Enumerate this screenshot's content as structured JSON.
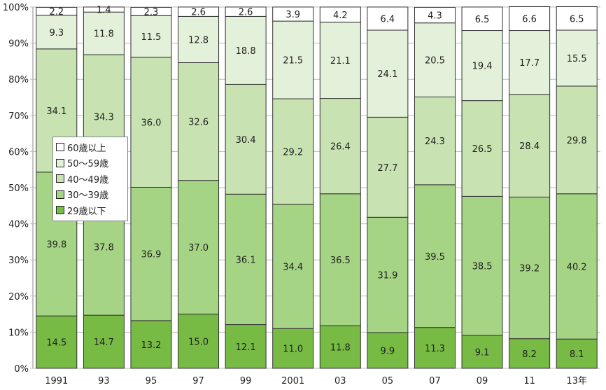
{
  "chart_data": {
    "type": "bar",
    "stacked": true,
    "categories": [
      "1991",
      "93",
      "95",
      "97",
      "99",
      "2001",
      "03",
      "05",
      "07",
      "09",
      "11",
      "13年"
    ],
    "series": [
      {
        "name": "29歳以下",
        "color": "#77bb45",
        "values": [
          14.5,
          14.7,
          13.2,
          15.0,
          12.1,
          11.0,
          11.8,
          9.9,
          11.3,
          9.1,
          8.2,
          8.1
        ]
      },
      {
        "name": "30〜39歳",
        "color": "#a6d485",
        "values": [
          39.8,
          37.8,
          36.9,
          37.0,
          36.1,
          34.4,
          36.5,
          31.9,
          39.5,
          38.5,
          39.2,
          40.2
        ]
      },
      {
        "name": "40〜49歳",
        "color": "#c8e2b2",
        "values": [
          34.1,
          34.3,
          36.0,
          32.6,
          30.4,
          29.2,
          26.4,
          27.7,
          24.3,
          26.5,
          28.4,
          29.8
        ]
      },
      {
        "name": "50〜59歳",
        "color": "#e4f1da",
        "values": [
          9.3,
          11.8,
          11.5,
          12.8,
          18.8,
          21.5,
          21.1,
          24.1,
          20.5,
          19.4,
          17.7,
          15.5
        ]
      },
      {
        "name": "60歳以上",
        "color": "#ffffff",
        "values": [
          2.2,
          1.4,
          2.3,
          2.6,
          2.6,
          3.9,
          4.2,
          6.4,
          4.3,
          6.5,
          6.6,
          6.5
        ]
      }
    ],
    "yticks": [
      "0%",
      "10%",
      "20%",
      "30%",
      "40%",
      "50%",
      "60%",
      "70%",
      "80%",
      "90%",
      "100%"
    ],
    "ylim": [
      0,
      100
    ],
    "legend_placement": "left-middle"
  }
}
